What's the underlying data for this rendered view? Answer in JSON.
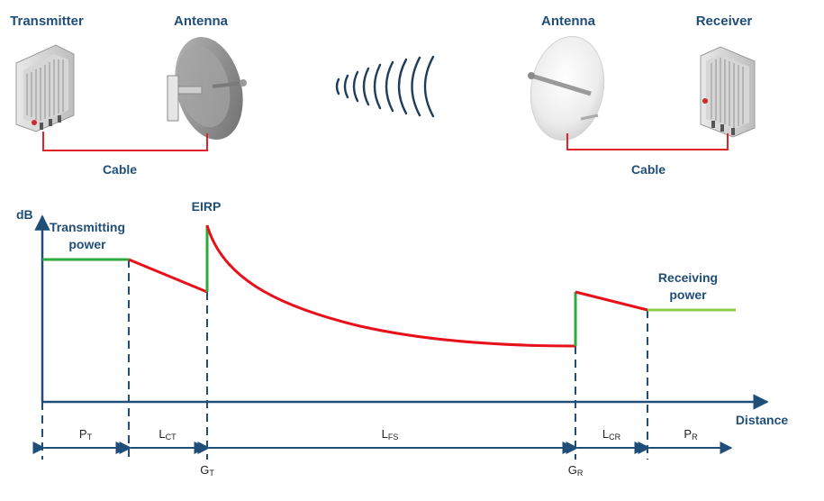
{
  "header_labels": {
    "transmitter": "Transmitter",
    "antenna_left": "Antenna",
    "antenna_right": "Antenna",
    "receiver": "Receiver",
    "cable_left": "Cable",
    "cable_right": "Cable"
  },
  "chart": {
    "ylabel": "dB",
    "xlabel": "Distance",
    "eirp_label": "EIRP",
    "transmitting_power_line1": "Transmitting",
    "transmitting_power_line2": "power",
    "receiving_power_line1": "Receiving",
    "receiving_power_line2": "power"
  },
  "segments": [
    {
      "main": "P",
      "sub": "T"
    },
    {
      "main": "L",
      "sub": "CT"
    },
    {
      "main": "L",
      "sub": "FS"
    },
    {
      "main": "L",
      "sub": "CR"
    },
    {
      "main": "P",
      "sub": "R"
    }
  ],
  "gains": [
    {
      "main": "G",
      "sub": "T"
    },
    {
      "main": "G",
      "sub": "R"
    }
  ],
  "colors": {
    "axis": "#1f4e79",
    "power_line": "#2eaa3c",
    "receiving_line": "#8ccc4a",
    "loss_line": "#e8101a",
    "cable": "#e0242a",
    "label_text": "#1f4e79",
    "wave": "#1f3d5c"
  }
}
